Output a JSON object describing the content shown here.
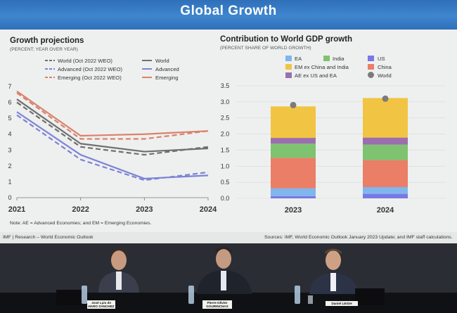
{
  "banner": {
    "title": "Global Growth"
  },
  "left_panel": {
    "title": "Growth projections",
    "subtitle": "(PERCENT; YEAR OVER YEAR)",
    "legend": [
      {
        "label": "World (Oct 2022 WEO)",
        "color": "#6f6f6f",
        "dashed": true
      },
      {
        "label": "Advanced (Oct 2022 WEO)",
        "color": "#7f83d6",
        "dashed": true
      },
      {
        "label": "Emerging (Oct 2022 WEO)",
        "color": "#d9826d",
        "dashed": true
      },
      {
        "label": "World",
        "color": "#6f6f6f",
        "dashed": false
      },
      {
        "label": "Advanced",
        "color": "#7f83d6",
        "dashed": false
      },
      {
        "label": "Emerging",
        "color": "#d9826d",
        "dashed": false
      }
    ],
    "footnote": "Note: AE = Advanced Economies; and EM = Emerging Economies."
  },
  "right_panel": {
    "title": "Contribution to World GDP growth",
    "subtitle": "(PERCENT SHARE OF WORLD GROWTH)",
    "legend": [
      {
        "label": "EA",
        "color": "#7fb6ee"
      },
      {
        "label": "India",
        "color": "#7ec36f"
      },
      {
        "label": "US",
        "color": "#7a78e4"
      },
      {
        "label": "EM ex China and India",
        "color": "#f2c443"
      },
      {
        "label": "China",
        "color": "#ea7e67"
      },
      {
        "label": "AE ex US and EA",
        "color": "#9b6fae"
      },
      {
        "label": "World",
        "color": "#7b7b7b"
      }
    ]
  },
  "footer": {
    "left": "IMF | Research – World Economic Outlook",
    "right": "Sources: IMF, World Economic Outlook January 2023 Update; and IMF staff calculations."
  },
  "name_tags": [
    {
      "text": "José Luis de HARO SÁNCHEZ"
    },
    {
      "text": "Pierre-Olivier GOURINCHAS"
    },
    {
      "text": "Daniel LEIGH"
    }
  ],
  "chart_data": [
    {
      "type": "line",
      "x": [
        2021,
        2022,
        2023,
        2024
      ],
      "xlim": [
        2021,
        2024
      ],
      "ylim": [
        0,
        7
      ],
      "y_ticks": [
        0,
        1,
        2,
        3,
        4,
        5,
        6,
        7
      ],
      "series": [
        {
          "name": "World (Oct 2022 WEO)",
          "values": [
            6.0,
            3.2,
            2.7,
            3.2
          ],
          "color": "#6f6f6f",
          "dashed": true
        },
        {
          "name": "Advanced (Oct 2022 WEO)",
          "values": [
            5.2,
            2.4,
            1.1,
            1.6
          ],
          "color": "#7f83d6",
          "dashed": true
        },
        {
          "name": "Emerging (Oct 2022 WEO)",
          "values": [
            6.6,
            3.7,
            3.7,
            4.2
          ],
          "color": "#d9826d",
          "dashed": true
        },
        {
          "name": "World",
          "values": [
            6.2,
            3.4,
            2.9,
            3.1
          ],
          "color": "#6f6f6f",
          "dashed": false
        },
        {
          "name": "Advanced",
          "values": [
            5.4,
            2.7,
            1.2,
            1.4
          ],
          "color": "#7f83d6",
          "dashed": false
        },
        {
          "name": "Emerging",
          "values": [
            6.7,
            3.9,
            4.0,
            4.2
          ],
          "color": "#d9826d",
          "dashed": false
        }
      ]
    },
    {
      "type": "bar",
      "stacked": true,
      "categories": [
        "2023",
        "2024"
      ],
      "ylim": [
        0,
        3.5
      ],
      "y_ticks": [
        0.0,
        0.5,
        1.0,
        1.5,
        2.0,
        2.5,
        3.0,
        3.5
      ],
      "series": [
        {
          "name": "US",
          "values": [
            0.07,
            0.14
          ],
          "color": "#7a78e4"
        },
        {
          "name": "EA",
          "values": [
            0.24,
            0.21
          ],
          "color": "#7fb6ee"
        },
        {
          "name": "China",
          "values": [
            0.95,
            0.84
          ],
          "color": "#ea7e67"
        },
        {
          "name": "India",
          "values": [
            0.44,
            0.48
          ],
          "color": "#7ec36f"
        },
        {
          "name": "AE ex US and EA",
          "values": [
            0.18,
            0.22
          ],
          "color": "#9b6fae"
        },
        {
          "name": "EM ex China and India",
          "values": [
            0.98,
            1.23
          ],
          "color": "#f2c443"
        }
      ],
      "world": {
        "name": "World",
        "values": [
          2.9,
          3.1
        ],
        "color": "#7b7b7b"
      }
    }
  ]
}
